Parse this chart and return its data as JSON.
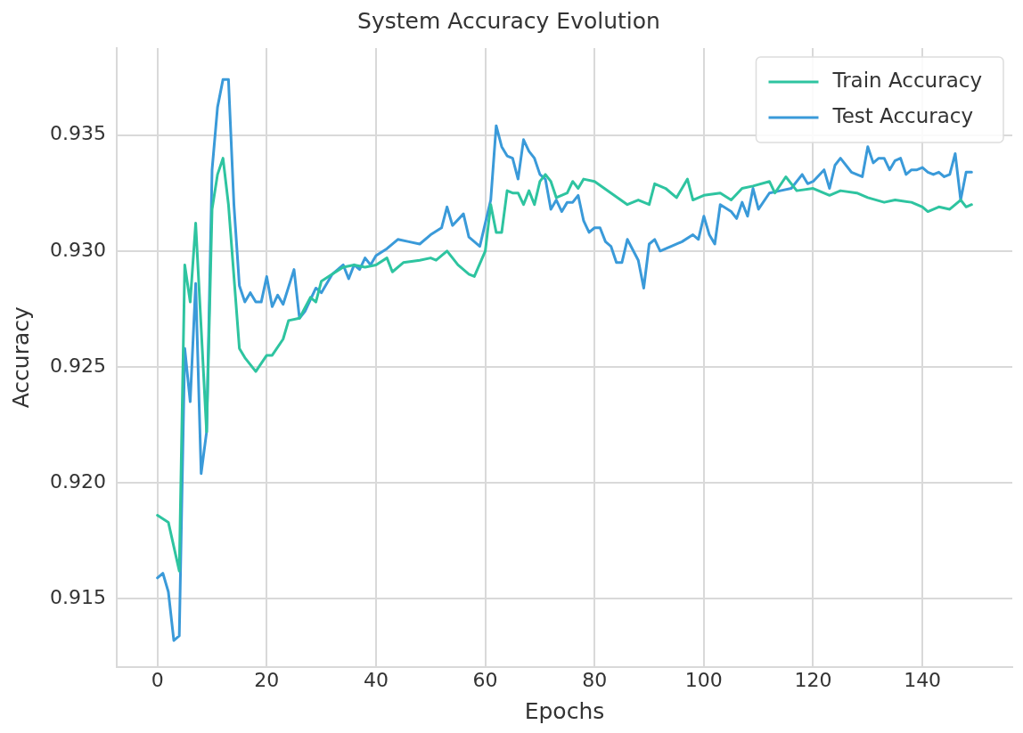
{
  "chart_data": {
    "type": "line",
    "title": "System Accuracy Evolution",
    "xlabel": "Epochs",
    "ylabel": "Accuracy",
    "xlim": [
      -7.45,
      156.45
    ],
    "ylim": [
      0.91207,
      0.93875
    ],
    "xticks": [
      0,
      20,
      40,
      60,
      80,
      100,
      120,
      140
    ],
    "yticks": [
      {
        "value": 0.915,
        "label": "0.915"
      },
      {
        "value": 0.92,
        "label": "0.920"
      },
      {
        "value": 0.925,
        "label": "0.925"
      },
      {
        "value": 0.93,
        "label": "0.930"
      },
      {
        "value": 0.935,
        "label": "0.935"
      }
    ],
    "grid": true,
    "legend": "top right",
    "marker": "none",
    "line_style": "solid",
    "series": [
      {
        "name": "Train Accuracy",
        "color": "#2ec4a0",
        "x": [
          0,
          2,
          4,
          5,
          6,
          7,
          9,
          10,
          11,
          12,
          13,
          15,
          16,
          18,
          20,
          21,
          23,
          24,
          26,
          28,
          29,
          30,
          32,
          34,
          36,
          38,
          40,
          42,
          43,
          45,
          48,
          50,
          51,
          53,
          55,
          57,
          58,
          60,
          61,
          62,
          63,
          64,
          65,
          66,
          67,
          68,
          69,
          70,
          71,
          72,
          73,
          75,
          76,
          77,
          78,
          80,
          83,
          86,
          88,
          90,
          91,
          93,
          95,
          97,
          98,
          100,
          103,
          105,
          107,
          109,
          112,
          113,
          115,
          117,
          120,
          123,
          125,
          128,
          130,
          133,
          135,
          138,
          140,
          141,
          143,
          145,
          147,
          148,
          149
        ],
        "values": [
          0.9186,
          0.9183,
          0.9162,
          0.9294,
          0.9278,
          0.9312,
          0.9222,
          0.9318,
          0.9333,
          0.934,
          0.932,
          0.9258,
          0.9254,
          0.9248,
          0.9255,
          0.9255,
          0.9262,
          0.927,
          0.9271,
          0.928,
          0.9278,
          0.9287,
          0.929,
          0.9293,
          0.9294,
          0.9293,
          0.9294,
          0.9297,
          0.9291,
          0.9295,
          0.9296,
          0.9297,
          0.9296,
          0.93,
          0.9294,
          0.929,
          0.9289,
          0.93,
          0.932,
          0.9308,
          0.9308,
          0.9326,
          0.9325,
          0.9325,
          0.932,
          0.9326,
          0.932,
          0.933,
          0.9333,
          0.933,
          0.9323,
          0.9325,
          0.933,
          0.9327,
          0.9331,
          0.933,
          0.9325,
          0.932,
          0.9322,
          0.932,
          0.9329,
          0.9327,
          0.9323,
          0.9331,
          0.9322,
          0.9324,
          0.9325,
          0.9322,
          0.9327,
          0.9328,
          0.933,
          0.9325,
          0.9332,
          0.9326,
          0.9327,
          0.9324,
          0.9326,
          0.9325,
          0.9323,
          0.9321,
          0.9322,
          0.9321,
          0.9319,
          0.9317,
          0.9319,
          0.9318,
          0.9322,
          0.9319,
          0.932
        ]
      },
      {
        "name": "Test Accuracy",
        "color": "#3a9ad9",
        "x": [
          0,
          1,
          2,
          3,
          4,
          5,
          6,
          7,
          8,
          9,
          10,
          11,
          12,
          13,
          14,
          15,
          16,
          17,
          18,
          19,
          20,
          21,
          22,
          23,
          25,
          26,
          27,
          29,
          30,
          32,
          34,
          35,
          36,
          37,
          38,
          39,
          40,
          42,
          44,
          46,
          48,
          50,
          52,
          53,
          54,
          56,
          57,
          59,
          60,
          61,
          62,
          63,
          64,
          65,
          66,
          67,
          68,
          69,
          70,
          71,
          72,
          73,
          74,
          75,
          76,
          77,
          78,
          79,
          80,
          81,
          82,
          83,
          84,
          85,
          86,
          88,
          89,
          90,
          91,
          92,
          94,
          96,
          98,
          99,
          100,
          101,
          102,
          103,
          105,
          106,
          107,
          108,
          109,
          110,
          112,
          114,
          116,
          118,
          119,
          120,
          122,
          123,
          124,
          125,
          127,
          128,
          129,
          130,
          131,
          132,
          133,
          134,
          135,
          136,
          137,
          138,
          139,
          140,
          141,
          142,
          143,
          144,
          145,
          146,
          147,
          148,
          149
        ],
        "values": [
          0.9159,
          0.9161,
          0.9153,
          0.9132,
          0.9134,
          0.9258,
          0.9235,
          0.9286,
          0.9204,
          0.9222,
          0.9335,
          0.9362,
          0.9374,
          0.9374,
          0.932,
          0.9285,
          0.9278,
          0.9282,
          0.9278,
          0.9278,
          0.9289,
          0.9276,
          0.9281,
          0.9277,
          0.9292,
          0.9271,
          0.9274,
          0.9284,
          0.9282,
          0.929,
          0.9294,
          0.9288,
          0.9294,
          0.9292,
          0.9297,
          0.9294,
          0.9298,
          0.9301,
          0.9305,
          0.9304,
          0.9303,
          0.9307,
          0.931,
          0.9319,
          0.9311,
          0.9316,
          0.9306,
          0.9302,
          0.9312,
          0.9322,
          0.9354,
          0.9345,
          0.9341,
          0.934,
          0.9331,
          0.9348,
          0.9343,
          0.934,
          0.9333,
          0.9331,
          0.9318,
          0.9322,
          0.9317,
          0.9321,
          0.9321,
          0.9324,
          0.9313,
          0.9308,
          0.931,
          0.931,
          0.9304,
          0.9302,
          0.9295,
          0.9295,
          0.9305,
          0.9296,
          0.9284,
          0.9303,
          0.9305,
          0.93,
          0.9302,
          0.9304,
          0.9307,
          0.9305,
          0.9315,
          0.9307,
          0.9303,
          0.932,
          0.9317,
          0.9314,
          0.9321,
          0.9315,
          0.9327,
          0.9318,
          0.9325,
          0.9326,
          0.9327,
          0.9333,
          0.9329,
          0.933,
          0.9335,
          0.9327,
          0.9337,
          0.934,
          0.9334,
          0.9333,
          0.9332,
          0.9345,
          0.9338,
          0.934,
          0.934,
          0.9335,
          0.9339,
          0.934,
          0.9333,
          0.9335,
          0.9335,
          0.9336,
          0.9334,
          0.9333,
          0.9334,
          0.9332,
          0.9333,
          0.9342,
          0.9322,
          0.9334,
          0.9334
        ]
      }
    ]
  }
}
